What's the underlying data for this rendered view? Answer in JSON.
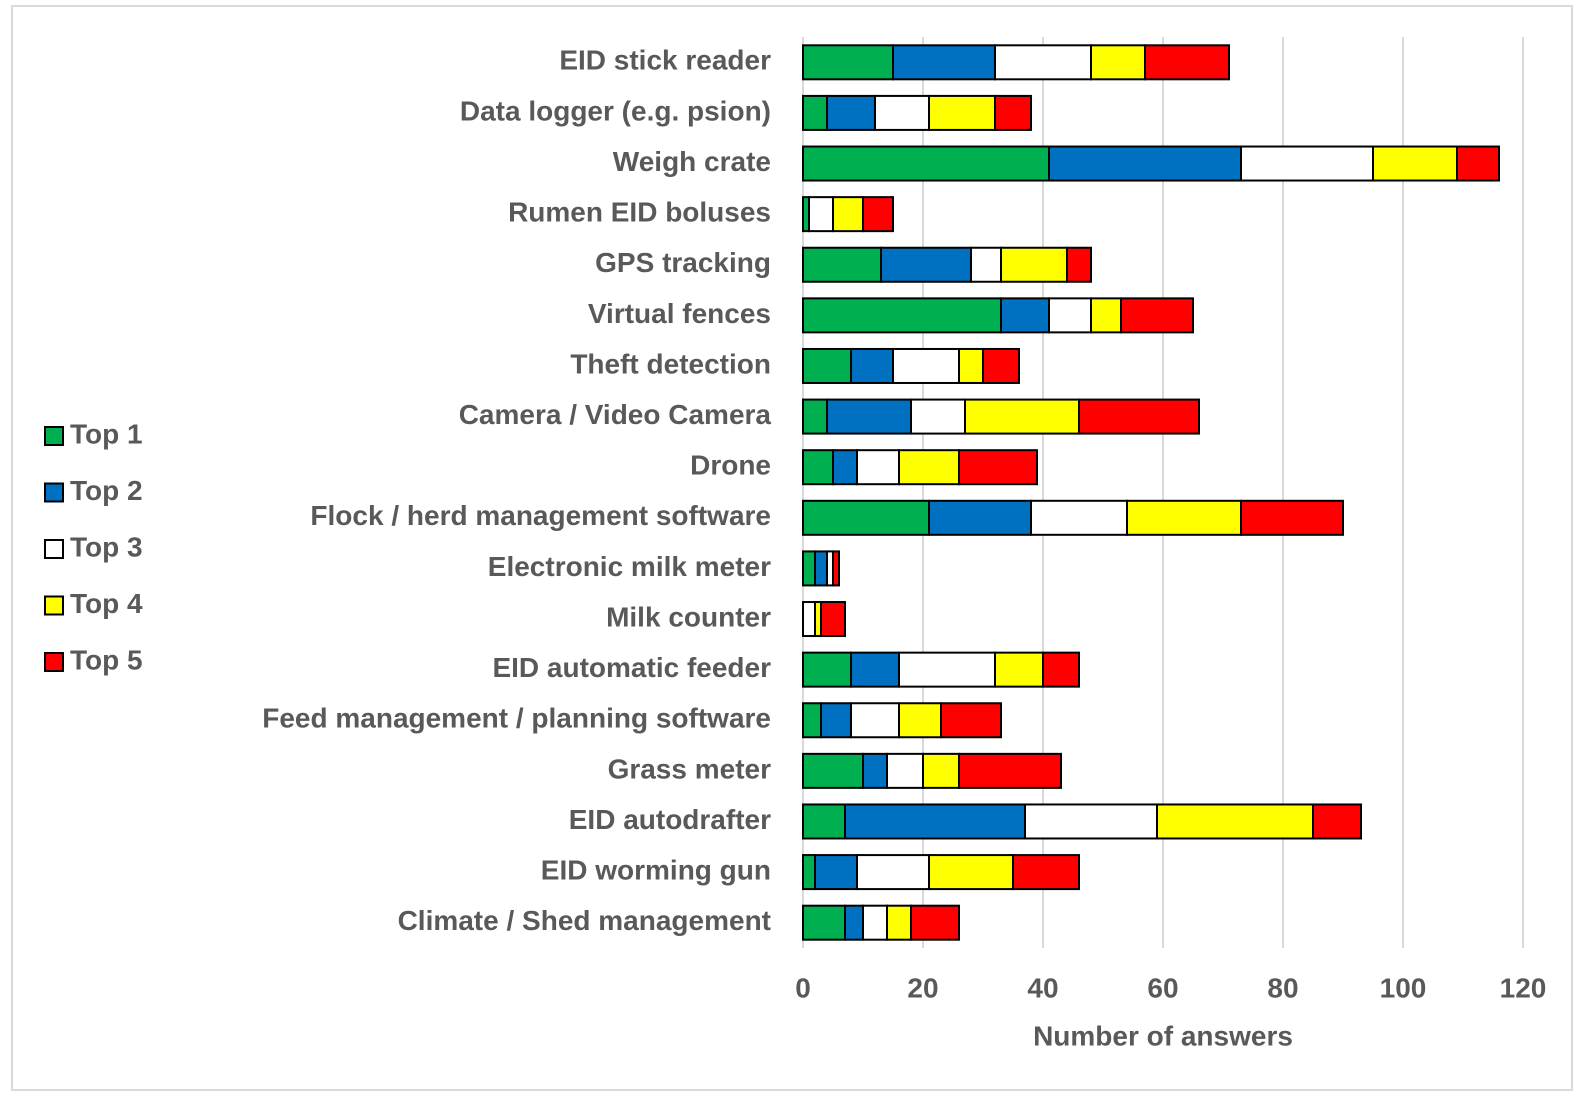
{
  "chart_data": {
    "type": "stacked-bar-horizontal",
    "categories": [
      "EID stick reader",
      "Data logger (e.g. psion)",
      "Weigh crate",
      "Rumen EID boluses",
      "GPS tracking",
      "Virtual fences",
      "Theft detection",
      "Camera / Video Camera",
      "Drone",
      "Flock / herd management software",
      "Electronic milk meter",
      "Milk counter",
      "EID automatic feeder",
      "Feed management / planning software",
      "Grass meter",
      "EID autodrafter",
      "EID worming gun",
      "Climate / Shed management"
    ],
    "series": [
      {
        "name": "Top 1",
        "color": "#00b050",
        "values": [
          15,
          4,
          41,
          1,
          13,
          33,
          8,
          4,
          5,
          21,
          2,
          0,
          8,
          3,
          10,
          7,
          2,
          7
        ]
      },
      {
        "name": "Top 2",
        "color": "#0070c0",
        "values": [
          17,
          8,
          32,
          0,
          15,
          8,
          7,
          14,
          4,
          17,
          2,
          0,
          8,
          5,
          4,
          30,
          7,
          3
        ]
      },
      {
        "name": "Top 3",
        "color": "#ffffff",
        "values": [
          16,
          9,
          22,
          4,
          5,
          7,
          11,
          9,
          7,
          16,
          1,
          2,
          16,
          8,
          6,
          22,
          12,
          4
        ]
      },
      {
        "name": "Top 4",
        "color": "#ffff00",
        "values": [
          9,
          11,
          14,
          5,
          11,
          5,
          4,
          19,
          10,
          19,
          0,
          1,
          8,
          7,
          6,
          26,
          14,
          4
        ]
      },
      {
        "name": "Top 5",
        "color": "#ff0000",
        "values": [
          14,
          6,
          7,
          5,
          4,
          12,
          6,
          20,
          13,
          17,
          1,
          4,
          6,
          10,
          17,
          8,
          11,
          8
        ]
      }
    ],
    "xlabel": "Number of answers",
    "xlim": [
      0,
      120
    ],
    "xticks": [
      0,
      20,
      40,
      60,
      80,
      100,
      120
    ],
    "grid": true,
    "legend": "left"
  }
}
